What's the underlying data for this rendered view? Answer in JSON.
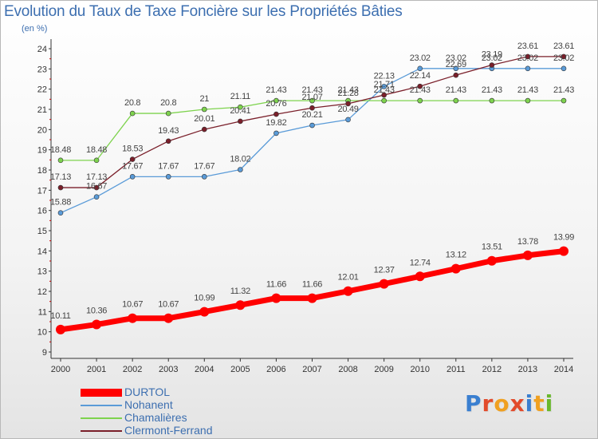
{
  "title": "Evolution du Taux de Taxe Foncière sur les Propriétés Bâties",
  "unit_label": "(en %)",
  "logo": {
    "text": "Proxiti",
    "letter_colors": [
      "#3a7fd0",
      "#e24a2a",
      "#f0a020",
      "#e24a2a",
      "#3a7fd0",
      "#f0a020",
      "#69b82c"
    ]
  },
  "colors": {
    "background_top": "#ffffff",
    "background_bottom": "#e4e4e4",
    "axis": "#333333",
    "axis_ticks_red": "#cc0000",
    "text": "#3d6fb0"
  },
  "chart_data": {
    "type": "line",
    "title": "Evolution du Taux de Taxe Foncière sur les Propriétés Bâties",
    "ylabel": "(en %)",
    "xlabel": "",
    "x": [
      "2000",
      "2001",
      "2002",
      "2003",
      "2004",
      "2005",
      "2006",
      "2007",
      "2008",
      "2009",
      "2010",
      "2011",
      "2012",
      "2013",
      "2014"
    ],
    "ylim": [
      9,
      24
    ],
    "yticks": [
      9,
      10,
      11,
      12,
      13,
      14,
      15,
      16,
      17,
      18,
      19,
      20,
      21,
      22,
      23,
      24
    ],
    "grid": false,
    "legend_position": "bottom-left",
    "series": [
      {
        "name": "DURTOL",
        "color": "#ff0000",
        "width": "thick",
        "values": [
          10.11,
          10.36,
          10.67,
          10.67,
          10.99,
          11.32,
          11.66,
          11.66,
          12.01,
          12.37,
          12.74,
          13.12,
          13.51,
          13.78,
          13.99
        ],
        "labels": [
          "10.11",
          "10.36",
          "10.67",
          "10.67",
          "10.99",
          "11.32",
          "11.66",
          "11.66",
          "12.01",
          "12.37",
          "12.74",
          "13.12",
          "13.51",
          "13.78",
          "13.99"
        ]
      },
      {
        "name": "Nohanent",
        "color": "#5a9bd8",
        "width": "thin",
        "values": [
          15.88,
          16.67,
          17.67,
          17.67,
          17.67,
          18.02,
          19.82,
          20.21,
          20.49,
          22.13,
          23.02,
          23.02,
          23.02,
          23.02,
          23.02
        ],
        "labels": [
          "15.88",
          "16.67",
          "17.67",
          "17.67",
          "17.67",
          "18.02",
          "19.82",
          "20.21",
          "20.49",
          "22.13",
          "23.02",
          "23.02",
          "23.02",
          "23.02",
          "23.02"
        ]
      },
      {
        "name": "Chamalières",
        "color": "#7ed34e",
        "width": "thin",
        "values": [
          18.48,
          18.48,
          20.8,
          20.8,
          21,
          21.11,
          21.43,
          21.43,
          21.43,
          21.43,
          21.43,
          21.43,
          21.43,
          21.43,
          21.43
        ],
        "labels": [
          "18.48",
          "18.48",
          "20.8",
          "20.8",
          "21",
          "21.11",
          "21.43",
          "21.43",
          "21.43",
          "21.43",
          "21.43",
          "21.43",
          "21.43",
          "21.43",
          "21.43"
        ]
      },
      {
        "name": "Clermont-Ferrand",
        "color": "#7a1f2a",
        "width": "thin",
        "values": [
          17.13,
          17.13,
          18.53,
          19.43,
          20.01,
          20.41,
          20.76,
          21.07,
          21.28,
          21.71,
          22.14,
          22.69,
          23.19,
          23.61,
          23.61
        ],
        "labels": [
          "17.13",
          "17.13",
          "18.53",
          "19.43",
          "20.01",
          "20.41",
          "20.76",
          "21.07",
          "21.28",
          "21.71",
          "22.14",
          "22.69",
          "23.19",
          "23.61",
          "23.61"
        ]
      }
    ]
  }
}
